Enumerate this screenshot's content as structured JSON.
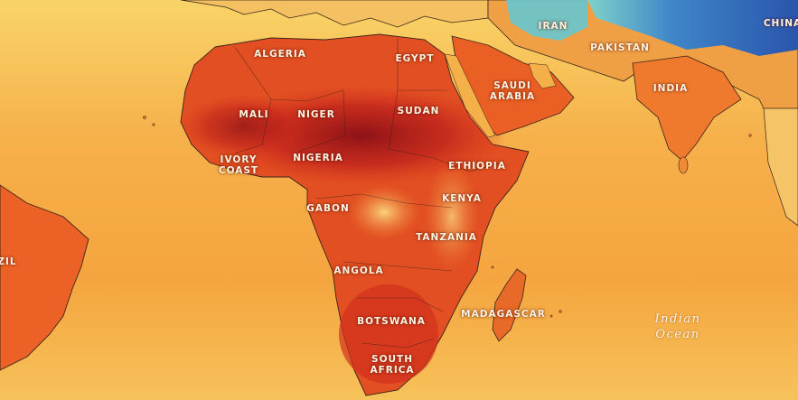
{
  "map": {
    "countries": {
      "algeria": "ALGERIA",
      "egypt": "EGYPT",
      "iran": "IRAN",
      "pakistan": "PAKISTAN",
      "china": "CHINA",
      "saudi_line1": "SAUDI",
      "saudi_line2": "ARABIA",
      "india": "INDIA",
      "mali": "MALI",
      "niger": "NIGER",
      "sudan": "SUDAN",
      "ivory_line1": "IVORY",
      "ivory_line2": "COAST",
      "nigeria": "NIGERIA",
      "ethiopia": "ETHIOPIA",
      "kenya": "KENYA",
      "gabon": "GABON",
      "tanzania": "TANZANIA",
      "angola": "ANGOLA",
      "botswana": "BOTSWANA",
      "madagascar": "MADAGASCAR",
      "south_line1": "SOUTH",
      "south_line2": "AFRICA",
      "brazil_partial": "ZIL"
    },
    "oceans": {
      "indian_line1": "Indian",
      "indian_line2": "Ocean"
    },
    "colors": {
      "ocean_warm": "#f6b24a",
      "ocean_cool": "#f8d66a",
      "land_hot": "#d8331e",
      "land_hottest": "#9a1418",
      "land_warm": "#ec6a24",
      "cold_highland": "#2e5fb8",
      "borders": "#3a2418"
    }
  }
}
